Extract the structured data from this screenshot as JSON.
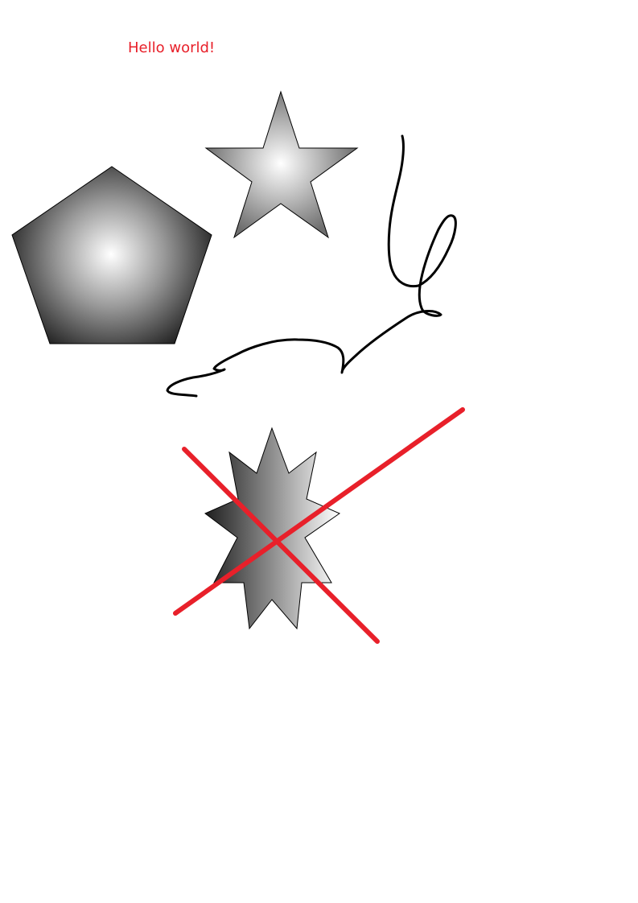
{
  "canvas": {
    "text": "Hello world!",
    "text_color": "#e8202a",
    "background": "#ffffff",
    "shapes": {
      "pentagon": {
        "fill": "radial-gradient",
        "center_color": "#ffffff",
        "edge_color": "#111111",
        "stroke": "#000000"
      },
      "star": {
        "fill": "radial-gradient",
        "center_color": "#ffffff",
        "edge_color": "#6e6e6e",
        "stroke": "#000000"
      },
      "freehand_curve": {
        "stroke": "#000000"
      },
      "nine_point_star": {
        "fill": "linear-gradient",
        "start_color": "#1e1e1e",
        "end_color": "#ffffff",
        "stroke": "#000000"
      },
      "red_cross": {
        "stroke": "#e8202a"
      }
    }
  }
}
